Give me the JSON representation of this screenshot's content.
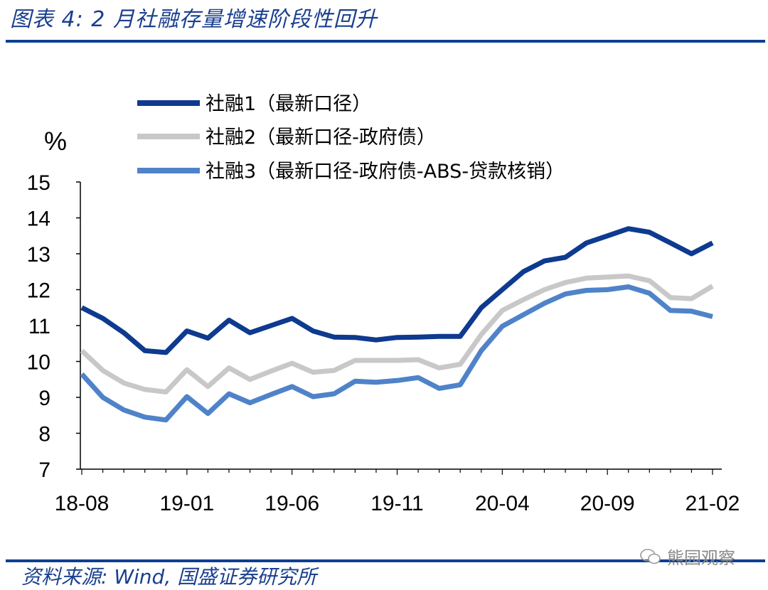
{
  "title": "图表 4:  2 月社融存量增速阶段性回升",
  "source": "资料来源: Wind, 国盛证券研究所",
  "watermark": "熊园观察",
  "chart_data": {
    "type": "line",
    "ylabel": "%",
    "ylim": [
      7,
      15
    ],
    "yticks": [
      7,
      8,
      9,
      10,
      11,
      12,
      13,
      14,
      15
    ],
    "x_tick_labels": [
      "18-08",
      "19-01",
      "19-06",
      "19-11",
      "20-04",
      "20-09",
      "21-02"
    ],
    "x": [
      "18-08",
      "18-09",
      "18-10",
      "18-11",
      "18-12",
      "19-01",
      "19-02",
      "19-03",
      "19-04",
      "19-05",
      "19-06",
      "19-07",
      "19-08",
      "19-09",
      "19-10",
      "19-11",
      "19-12",
      "20-01",
      "20-02",
      "20-03",
      "20-04",
      "20-05",
      "20-06",
      "20-07",
      "20-08",
      "20-09",
      "20-10",
      "20-11",
      "20-12",
      "21-01",
      "21-02"
    ],
    "grid": false,
    "legend_position": "top-left",
    "series": [
      {
        "name": "社融1（最新口径）",
        "color": "#0e3a8f",
        "values": [
          11.5,
          11.2,
          10.8,
          10.3,
          10.25,
          10.85,
          10.65,
          11.15,
          10.8,
          11.0,
          11.2,
          10.85,
          10.68,
          10.67,
          10.6,
          10.67,
          10.68,
          10.7,
          10.7,
          11.5,
          12.0,
          12.5,
          12.8,
          12.9,
          13.3,
          13.5,
          13.7,
          13.6,
          13.3,
          13.0,
          13.3
        ]
      },
      {
        "name": "社融2（最新口径-政府债）",
        "color": "#c8c8c8",
        "values": [
          10.3,
          9.75,
          9.4,
          9.22,
          9.15,
          9.77,
          9.3,
          9.82,
          9.5,
          9.73,
          9.95,
          9.7,
          9.75,
          10.03,
          10.03,
          10.03,
          10.05,
          9.82,
          9.92,
          10.75,
          11.42,
          11.72,
          12.0,
          12.2,
          12.32,
          12.35,
          12.38,
          12.25,
          11.78,
          11.75,
          12.1
        ]
      },
      {
        "name": "社融3（最新口径-政府债-ABS-贷款核销）",
        "color": "#4f83c9",
        "values": [
          9.65,
          9.0,
          8.65,
          8.45,
          8.37,
          9.02,
          8.55,
          9.1,
          8.85,
          9.08,
          9.3,
          9.02,
          9.1,
          9.45,
          9.42,
          9.47,
          9.55,
          9.25,
          9.35,
          10.3,
          10.98,
          11.3,
          11.62,
          11.88,
          11.98,
          12.0,
          12.08,
          11.9,
          11.42,
          11.4,
          11.25
        ]
      }
    ]
  }
}
